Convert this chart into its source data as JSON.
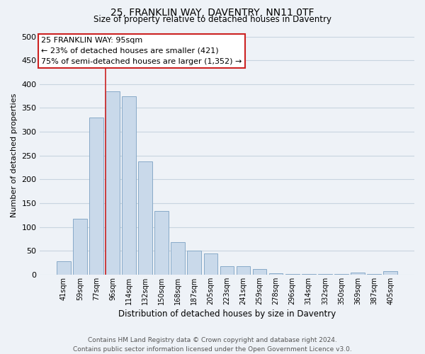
{
  "title1": "25, FRANKLIN WAY, DAVENTRY, NN11 0TF",
  "title2": "Size of property relative to detached houses in Daventry",
  "xlabel": "Distribution of detached houses by size in Daventry",
  "ylabel": "Number of detached properties",
  "bar_labels": [
    "41sqm",
    "59sqm",
    "77sqm",
    "96sqm",
    "114sqm",
    "132sqm",
    "150sqm",
    "168sqm",
    "187sqm",
    "205sqm",
    "223sqm",
    "241sqm",
    "259sqm",
    "278sqm",
    "296sqm",
    "314sqm",
    "332sqm",
    "350sqm",
    "369sqm",
    "387sqm",
    "405sqm"
  ],
  "bar_heights": [
    28,
    117,
    330,
    385,
    375,
    237,
    133,
    68,
    50,
    45,
    18,
    18,
    12,
    3,
    2,
    2,
    2,
    2,
    4,
    2,
    7
  ],
  "bar_color": "#c9d9ea",
  "bar_edgecolor": "#88aac8",
  "vline_x_index": 3,
  "vline_color": "#cc2222",
  "ylim": [
    0,
    500
  ],
  "yticks": [
    0,
    50,
    100,
    150,
    200,
    250,
    300,
    350,
    400,
    450,
    500
  ],
  "annotation_title": "25 FRANKLIN WAY: 95sqm",
  "annotation_line1": "← 23% of detached houses are smaller (421)",
  "annotation_line2": "75% of semi-detached houses are larger (1,352) →",
  "annotation_box_facecolor": "#ffffff",
  "annotation_box_edgecolor": "#cc2222",
  "footer1": "Contains HM Land Registry data © Crown copyright and database right 2024.",
  "footer2": "Contains public sector information licensed under the Open Government Licence v3.0.",
  "bg_color": "#eef2f7",
  "grid_color": "#c8d4e0"
}
